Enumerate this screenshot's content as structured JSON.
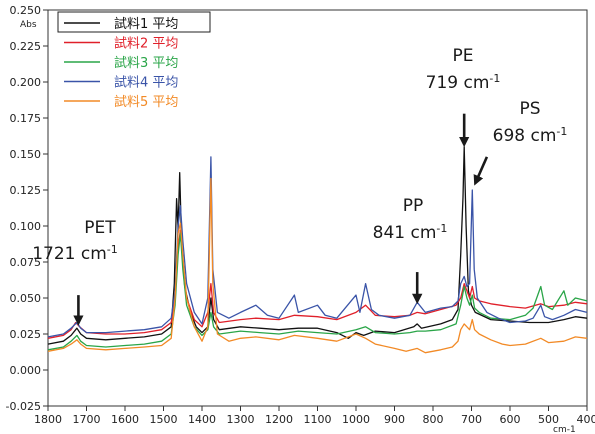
{
  "chart_data": {
    "type": "line",
    "title": "",
    "xlabel": "cm-1",
    "ylabel": "Abs",
    "xlim": [
      1800,
      400
    ],
    "x_reversed": true,
    "ylim": [
      -0.025,
      0.25
    ],
    "xticks": [
      1800,
      1700,
      1600,
      1500,
      1400,
      1300,
      1200,
      1100,
      1000,
      900,
      800,
      700,
      600,
      500,
      400
    ],
    "yticks": [
      "-0.025",
      "0.000",
      "0.025",
      "0.050",
      "0.075",
      "0.100",
      "0.125",
      "0.150",
      "0.175",
      "0.200",
      "0.225",
      "0.250"
    ],
    "grid": false,
    "legend_position": "top-left",
    "series": [
      {
        "name": "試料1 平均",
        "color": "#111111",
        "points": [
          [
            1800,
            0.018
          ],
          [
            1760,
            0.02
          ],
          [
            1740,
            0.024
          ],
          [
            1725,
            0.029
          ],
          [
            1715,
            0.025
          ],
          [
            1700,
            0.022
          ],
          [
            1650,
            0.021
          ],
          [
            1600,
            0.022
          ],
          [
            1550,
            0.023
          ],
          [
            1505,
            0.025
          ],
          [
            1480,
            0.03
          ],
          [
            1472,
            0.06
          ],
          [
            1466,
            0.119
          ],
          [
            1462,
            0.098
          ],
          [
            1458,
            0.137
          ],
          [
            1453,
            0.088
          ],
          [
            1445,
            0.058
          ],
          [
            1430,
            0.04
          ],
          [
            1415,
            0.03
          ],
          [
            1400,
            0.026
          ],
          [
            1385,
            0.03
          ],
          [
            1377,
            0.05
          ],
          [
            1370,
            0.035
          ],
          [
            1355,
            0.028
          ],
          [
            1300,
            0.03
          ],
          [
            1250,
            0.029
          ],
          [
            1200,
            0.028
          ],
          [
            1150,
            0.029
          ],
          [
            1100,
            0.029
          ],
          [
            1050,
            0.026
          ],
          [
            1020,
            0.022
          ],
          [
            1000,
            0.026
          ],
          [
            980,
            0.024
          ],
          [
            950,
            0.027
          ],
          [
            900,
            0.026
          ],
          [
            850,
            0.03
          ],
          [
            841,
            0.032
          ],
          [
            830,
            0.029
          ],
          [
            780,
            0.032
          ],
          [
            750,
            0.035
          ],
          [
            735,
            0.042
          ],
          [
            728,
            0.08
          ],
          [
            722,
            0.12
          ],
          [
            719,
            0.155
          ],
          [
            714,
            0.1
          ],
          [
            708,
            0.055
          ],
          [
            700,
            0.045
          ],
          [
            690,
            0.04
          ],
          [
            650,
            0.035
          ],
          [
            600,
            0.034
          ],
          [
            550,
            0.033
          ],
          [
            500,
            0.033
          ],
          [
            460,
            0.035
          ],
          [
            430,
            0.037
          ],
          [
            400,
            0.036
          ]
        ]
      },
      {
        "name": "試料2 平均",
        "color": "#e0202a",
        "points": [
          [
            1800,
            0.022
          ],
          [
            1760,
            0.024
          ],
          [
            1740,
            0.028
          ],
          [
            1728,
            0.033
          ],
          [
            1718,
            0.03
          ],
          [
            1700,
            0.026
          ],
          [
            1650,
            0.025
          ],
          [
            1600,
            0.025
          ],
          [
            1550,
            0.026
          ],
          [
            1505,
            0.028
          ],
          [
            1480,
            0.033
          ],
          [
            1470,
            0.05
          ],
          [
            1462,
            0.085
          ],
          [
            1456,
            0.097
          ],
          [
            1450,
            0.075
          ],
          [
            1440,
            0.05
          ],
          [
            1420,
            0.035
          ],
          [
            1400,
            0.03
          ],
          [
            1385,
            0.04
          ],
          [
            1377,
            0.06
          ],
          [
            1370,
            0.04
          ],
          [
            1355,
            0.033
          ],
          [
            1300,
            0.035
          ],
          [
            1260,
            0.036
          ],
          [
            1200,
            0.035
          ],
          [
            1160,
            0.038
          ],
          [
            1100,
            0.037
          ],
          [
            1050,
            0.035
          ],
          [
            1000,
            0.04
          ],
          [
            975,
            0.045
          ],
          [
            950,
            0.038
          ],
          [
            900,
            0.037
          ],
          [
            860,
            0.038
          ],
          [
            841,
            0.04
          ],
          [
            820,
            0.039
          ],
          [
            780,
            0.042
          ],
          [
            740,
            0.045
          ],
          [
            728,
            0.05
          ],
          [
            719,
            0.06
          ],
          [
            712,
            0.055
          ],
          [
            705,
            0.05
          ],
          [
            698,
            0.058
          ],
          [
            692,
            0.05
          ],
          [
            680,
            0.048
          ],
          [
            650,
            0.046
          ],
          [
            600,
            0.044
          ],
          [
            560,
            0.043
          ],
          [
            520,
            0.046
          ],
          [
            500,
            0.044
          ],
          [
            460,
            0.045
          ],
          [
            430,
            0.047
          ],
          [
            400,
            0.046
          ]
        ]
      },
      {
        "name": "試料3 平均",
        "color": "#2aa548",
        "points": [
          [
            1800,
            0.014
          ],
          [
            1760,
            0.016
          ],
          [
            1740,
            0.02
          ],
          [
            1725,
            0.024
          ],
          [
            1715,
            0.02
          ],
          [
            1700,
            0.017
          ],
          [
            1650,
            0.016
          ],
          [
            1600,
            0.017
          ],
          [
            1550,
            0.018
          ],
          [
            1505,
            0.02
          ],
          [
            1480,
            0.025
          ],
          [
            1470,
            0.045
          ],
          [
            1462,
            0.08
          ],
          [
            1456,
            0.095
          ],
          [
            1450,
            0.07
          ],
          [
            1440,
            0.045
          ],
          [
            1420,
            0.03
          ],
          [
            1400,
            0.024
          ],
          [
            1385,
            0.028
          ],
          [
            1377,
            0.04
          ],
          [
            1370,
            0.03
          ],
          [
            1355,
            0.025
          ],
          [
            1300,
            0.027
          ],
          [
            1250,
            0.026
          ],
          [
            1200,
            0.025
          ],
          [
            1150,
            0.027
          ],
          [
            1100,
            0.026
          ],
          [
            1050,
            0.025
          ],
          [
            1000,
            0.028
          ],
          [
            975,
            0.03
          ],
          [
            950,
            0.026
          ],
          [
            900,
            0.025
          ],
          [
            860,
            0.026
          ],
          [
            841,
            0.027
          ],
          [
            820,
            0.027
          ],
          [
            780,
            0.028
          ],
          [
            740,
            0.032
          ],
          [
            728,
            0.045
          ],
          [
            719,
            0.058
          ],
          [
            712,
            0.05
          ],
          [
            705,
            0.045
          ],
          [
            698,
            0.052
          ],
          [
            692,
            0.043
          ],
          [
            680,
            0.04
          ],
          [
            650,
            0.036
          ],
          [
            600,
            0.035
          ],
          [
            560,
            0.038
          ],
          [
            540,
            0.043
          ],
          [
            520,
            0.058
          ],
          [
            510,
            0.045
          ],
          [
            490,
            0.042
          ],
          [
            460,
            0.055
          ],
          [
            450,
            0.045
          ],
          [
            430,
            0.05
          ],
          [
            400,
            0.048
          ]
        ]
      },
      {
        "name": "試料4 平均",
        "color": "#3a54a8",
        "points": [
          [
            1800,
            0.023
          ],
          [
            1760,
            0.025
          ],
          [
            1740,
            0.029
          ],
          [
            1725,
            0.033
          ],
          [
            1715,
            0.029
          ],
          [
            1700,
            0.026
          ],
          [
            1650,
            0.026
          ],
          [
            1600,
            0.027
          ],
          [
            1550,
            0.028
          ],
          [
            1505,
            0.03
          ],
          [
            1480,
            0.036
          ],
          [
            1470,
            0.055
          ],
          [
            1462,
            0.1
          ],
          [
            1456,
            0.114
          ],
          [
            1450,
            0.09
          ],
          [
            1440,
            0.06
          ],
          [
            1420,
            0.04
          ],
          [
            1400,
            0.032
          ],
          [
            1385,
            0.05
          ],
          [
            1377,
            0.148
          ],
          [
            1372,
            0.07
          ],
          [
            1360,
            0.04
          ],
          [
            1330,
            0.036
          ],
          [
            1300,
            0.04
          ],
          [
            1260,
            0.045
          ],
          [
            1230,
            0.038
          ],
          [
            1200,
            0.036
          ],
          [
            1160,
            0.052
          ],
          [
            1150,
            0.04
          ],
          [
            1100,
            0.045
          ],
          [
            1080,
            0.038
          ],
          [
            1050,
            0.036
          ],
          [
            1000,
            0.052
          ],
          [
            990,
            0.04
          ],
          [
            975,
            0.06
          ],
          [
            960,
            0.042
          ],
          [
            940,
            0.038
          ],
          [
            900,
            0.036
          ],
          [
            860,
            0.038
          ],
          [
            841,
            0.047
          ],
          [
            820,
            0.04
          ],
          [
            780,
            0.043
          ],
          [
            750,
            0.044
          ],
          [
            735,
            0.048
          ],
          [
            728,
            0.06
          ],
          [
            719,
            0.065
          ],
          [
            712,
            0.058
          ],
          [
            705,
            0.06
          ],
          [
            698,
            0.125
          ],
          [
            693,
            0.07
          ],
          [
            685,
            0.05
          ],
          [
            660,
            0.04
          ],
          [
            630,
            0.036
          ],
          [
            600,
            0.033
          ],
          [
            560,
            0.034
          ],
          [
            540,
            0.036
          ],
          [
            520,
            0.045
          ],
          [
            510,
            0.037
          ],
          [
            490,
            0.035
          ],
          [
            460,
            0.038
          ],
          [
            430,
            0.042
          ],
          [
            400,
            0.04
          ]
        ]
      },
      {
        "name": "試料5 平均",
        "color": "#f28a26",
        "points": [
          [
            1800,
            0.013
          ],
          [
            1760,
            0.015
          ],
          [
            1740,
            0.018
          ],
          [
            1725,
            0.021
          ],
          [
            1715,
            0.018
          ],
          [
            1700,
            0.015
          ],
          [
            1650,
            0.014
          ],
          [
            1600,
            0.015
          ],
          [
            1550,
            0.016
          ],
          [
            1505,
            0.017
          ],
          [
            1480,
            0.022
          ],
          [
            1470,
            0.05
          ],
          [
            1462,
            0.095
          ],
          [
            1456,
            0.102
          ],
          [
            1450,
            0.08
          ],
          [
            1440,
            0.05
          ],
          [
            1420,
            0.03
          ],
          [
            1400,
            0.02
          ],
          [
            1385,
            0.03
          ],
          [
            1377,
            0.133
          ],
          [
            1372,
            0.06
          ],
          [
            1360,
            0.025
          ],
          [
            1330,
            0.02
          ],
          [
            1300,
            0.022
          ],
          [
            1260,
            0.023
          ],
          [
            1200,
            0.021
          ],
          [
            1160,
            0.024
          ],
          [
            1100,
            0.022
          ],
          [
            1050,
            0.02
          ],
          [
            1000,
            0.025
          ],
          [
            975,
            0.022
          ],
          [
            950,
            0.018
          ],
          [
            900,
            0.015
          ],
          [
            870,
            0.013
          ],
          [
            841,
            0.015
          ],
          [
            820,
            0.012
          ],
          [
            780,
            0.014
          ],
          [
            750,
            0.016
          ],
          [
            735,
            0.02
          ],
          [
            728,
            0.028
          ],
          [
            719,
            0.032
          ],
          [
            712,
            0.03
          ],
          [
            705,
            0.028
          ],
          [
            698,
            0.035
          ],
          [
            692,
            0.028
          ],
          [
            680,
            0.025
          ],
          [
            650,
            0.021
          ],
          [
            620,
            0.018
          ],
          [
            600,
            0.017
          ],
          [
            560,
            0.018
          ],
          [
            520,
            0.022
          ],
          [
            500,
            0.019
          ],
          [
            460,
            0.02
          ],
          [
            430,
            0.023
          ],
          [
            400,
            0.022
          ]
        ]
      }
    ],
    "annotations": [
      {
        "id": "pet",
        "name": "PET",
        "wavenumber": "1721 cm",
        "superscript": "-1",
        "arrow_x": 1721,
        "arrow_y_top": 0.052,
        "arrow_y_tip": 0.034
      },
      {
        "id": "pp",
        "name": "PP",
        "wavenumber": "841 cm",
        "superscript": "-1",
        "arrow_x": 841,
        "arrow_y_top": 0.068,
        "arrow_y_tip": 0.049
      },
      {
        "id": "pe",
        "name": "PE",
        "wavenumber": "719 cm",
        "superscript": "-1",
        "arrow_x": 719,
        "arrow_y_top": 0.178,
        "arrow_y_tip": 0.158
      },
      {
        "id": "ps",
        "name": "PS",
        "wavenumber": "698 cm",
        "superscript": "-1",
        "arrow_x_start": 660,
        "arrow_y_start": 0.148,
        "arrow_x": 688,
        "arrow_y_tip": 0.131
      }
    ]
  }
}
